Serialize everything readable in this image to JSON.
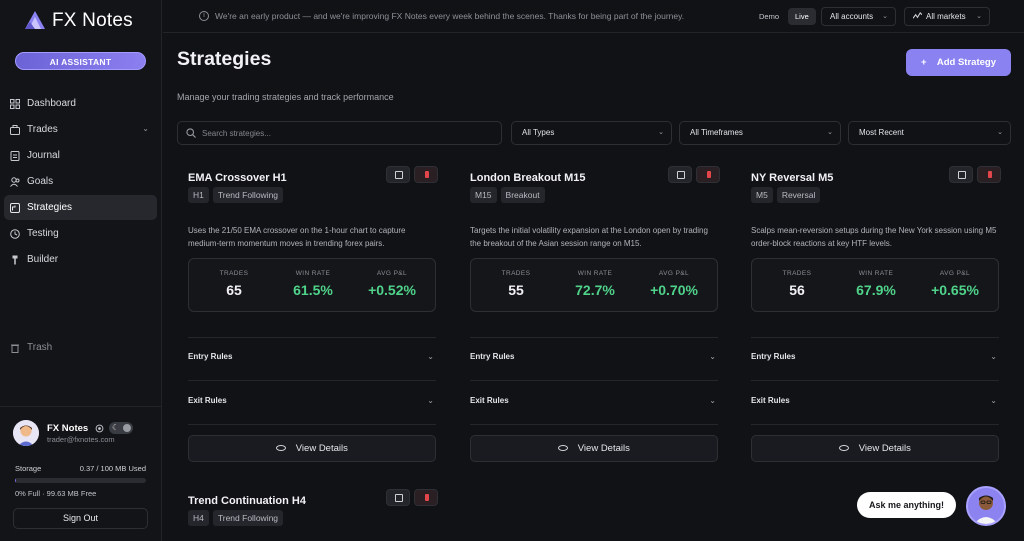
{
  "app": {
    "logo_text": "FX Notes",
    "ai_button": "AI ASSISTANT",
    "brand_color": "#8a82f0"
  },
  "sidebar": {
    "items": [
      {
        "label": "Dashboard",
        "icon": "grid-icon",
        "active": false
      },
      {
        "label": "Trades",
        "icon": "briefcase-icon",
        "active": false,
        "has_chevron": true
      },
      {
        "label": "Journal",
        "icon": "document-icon",
        "active": false
      },
      {
        "label": "Goals",
        "icon": "users-icon",
        "active": false
      },
      {
        "label": "Strategies",
        "icon": "strategy-icon",
        "active": true
      },
      {
        "label": "Testing",
        "icon": "clock-icon",
        "active": false
      },
      {
        "label": "Builder",
        "icon": "pin-icon",
        "active": false
      }
    ],
    "trash_label": "Trash",
    "user": {
      "name": "FX Notes",
      "email": "trader@fxnotes.com"
    },
    "storage": {
      "label": "Storage",
      "used": "0.37 / 100 MB Used",
      "fill_fraction": 0.0037,
      "sub": "0% Full · 99.63 MB Free"
    },
    "sign_out": "Sign Out"
  },
  "banner": {
    "message": "We're an early product — and we're improving FX Notes every week behind the scenes. Thanks for being part of the journey.",
    "demo": "Demo",
    "live": "Live",
    "accounts": "All accounts",
    "markets": "All markets"
  },
  "page": {
    "title": "Strategies",
    "subtitle": "Manage your trading strategies and track performance",
    "add_button": "Add Strategy"
  },
  "filters": {
    "search_placeholder": "Search strategies...",
    "type": "All Types",
    "timeframe": "All Timeframes",
    "sort": "Most Recent"
  },
  "stat_labels": {
    "trades": "TRADES",
    "win_rate": "WIN RATE",
    "avg_pnl": "AVG P&L"
  },
  "rule_labels": {
    "entry": "Entry Rules",
    "exit": "Exit Rules",
    "view": "View Details"
  },
  "strategies": [
    {
      "title": "EMA Crossover H1",
      "timeframe": "H1",
      "type": "Trend Following",
      "description": "Uses the 21/50 EMA crossover on the 1-hour chart to capture medium-term momentum moves in trending forex pairs.",
      "trades": "65",
      "win_rate": "61.5%",
      "avg_pnl": "+0.52%"
    },
    {
      "title": "London Breakout M15",
      "timeframe": "M15",
      "type": "Breakout",
      "description": "Targets the initial volatility expansion at the London open by trading the breakout of the Asian session range on M15.",
      "trades": "55",
      "win_rate": "72.7%",
      "avg_pnl": "+0.70%"
    },
    {
      "title": "NY Reversal M5",
      "timeframe": "M5",
      "type": "Reversal",
      "description": "Scalps mean-reversion setups during the New York session using M5 order-block reactions at key HTF levels.",
      "trades": "56",
      "win_rate": "67.9%",
      "avg_pnl": "+0.65%"
    },
    {
      "title": "Trend Continuation H4",
      "timeframe": "H4",
      "type": "Trend Following"
    }
  ],
  "chat": {
    "prompt": "Ask me anything!"
  }
}
